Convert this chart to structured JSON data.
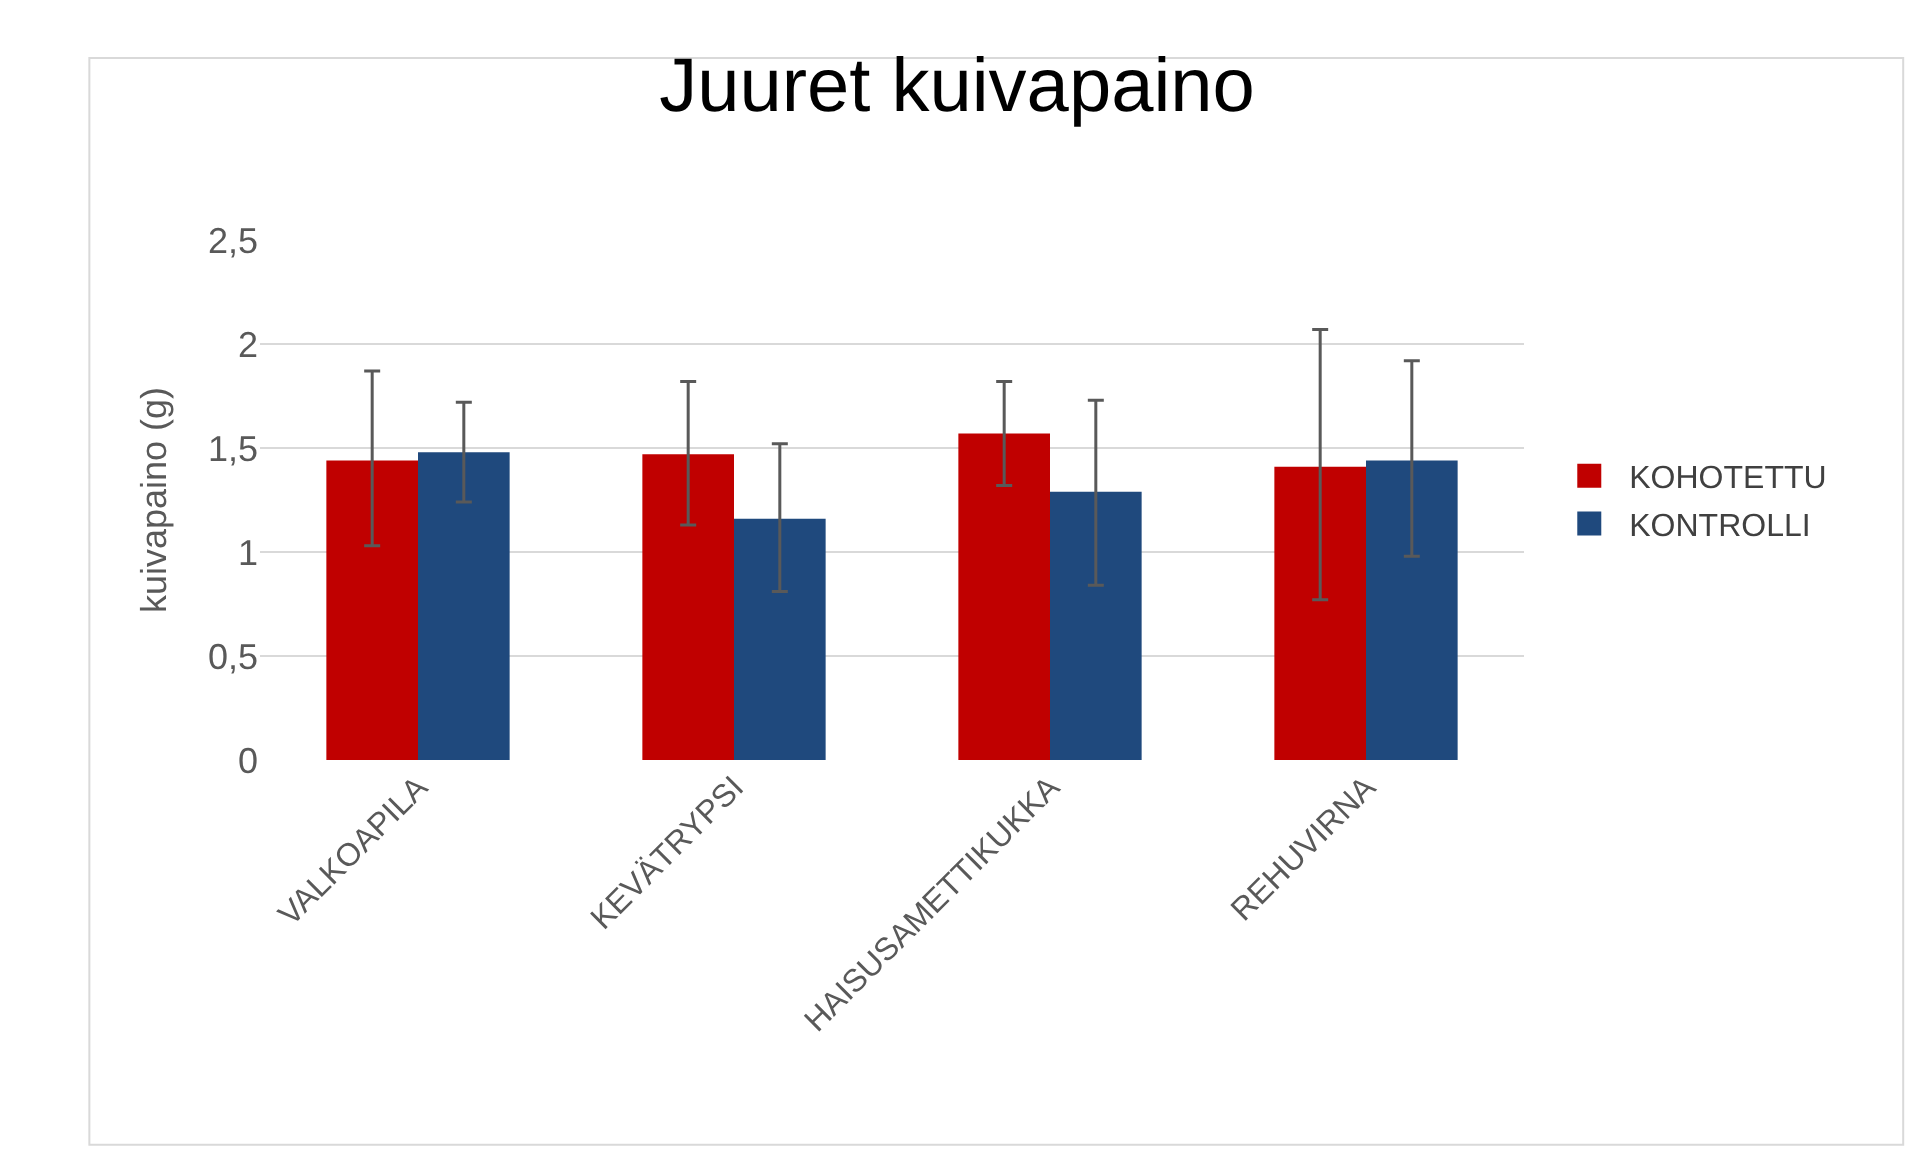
{
  "chart_data": {
    "type": "bar",
    "title": "Juuret kuivapaino",
    "ylabel": "kuivapaino (g)",
    "categories": [
      "VALKOAPILA",
      "KEVÄTRYPSI",
      "HAISUSAMETTIKUKKA",
      "REHUVIRNA"
    ],
    "series": [
      {
        "name": "KOHOTETTU",
        "color": "#c00000",
        "values": [
          1.44,
          1.47,
          1.57,
          1.41
        ],
        "errors": [
          [
            1.03,
            1.87
          ],
          [
            1.13,
            1.82
          ],
          [
            1.32,
            1.82
          ],
          [
            0.77,
            2.07
          ]
        ]
      },
      {
        "name": "KONTROLLI",
        "color": "#1f497d",
        "values": [
          1.48,
          1.16,
          1.29,
          1.44
        ],
        "errors": [
          [
            1.24,
            1.72
          ],
          [
            0.81,
            1.52
          ],
          [
            0.84,
            1.73
          ],
          [
            0.98,
            1.92
          ]
        ]
      }
    ],
    "ylim": [
      0,
      2.5
    ],
    "yticks": [
      {
        "value": 0,
        "label": "0"
      },
      {
        "value": 0.5,
        "label": "0,5"
      },
      {
        "value": 1,
        "label": "1"
      },
      {
        "value": 1.5,
        "label": "1,5"
      },
      {
        "value": 2,
        "label": "2"
      },
      {
        "value": 2.5,
        "label": "2,5"
      }
    ],
    "grid": "y",
    "legend": "right"
  }
}
